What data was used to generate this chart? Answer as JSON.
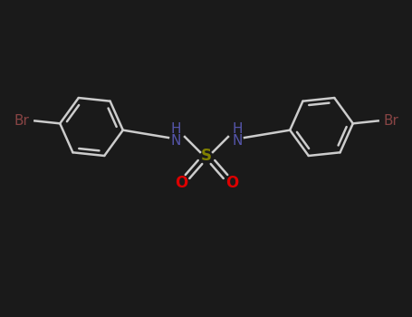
{
  "background_color": "#1a1a1a",
  "bond_color": "#cccccc",
  "n_color": "#5555aa",
  "s_color": "#808000",
  "o_color": "#dd0000",
  "br_color": "#884444",
  "nh_color": "#5555aa",
  "figsize": [
    4.55,
    3.5
  ],
  "dpi": 100,
  "xlim": [
    0,
    455
  ],
  "ylim": [
    0,
    350
  ]
}
